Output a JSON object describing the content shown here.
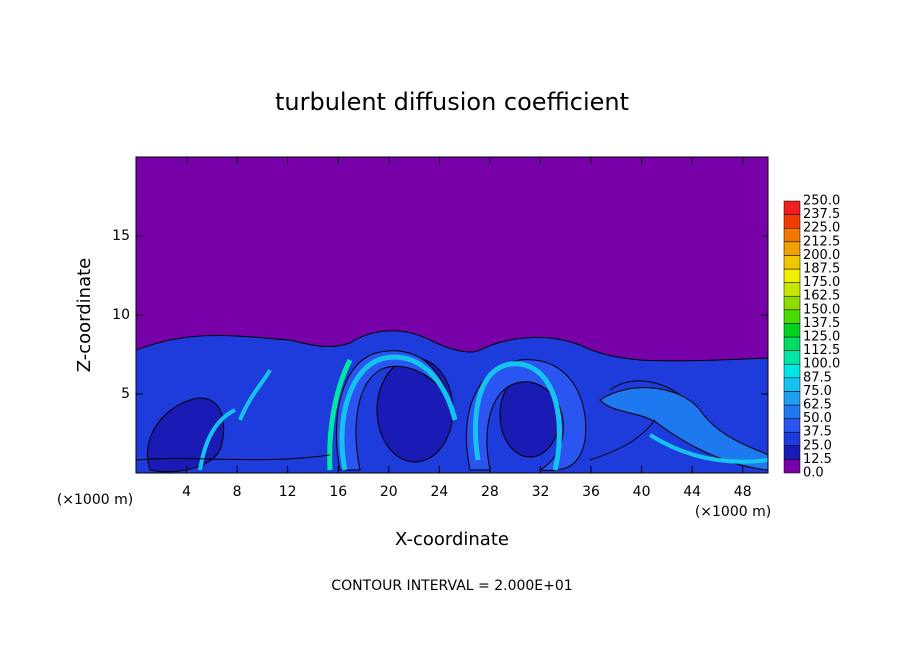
{
  "chart_data": {
    "type": "contour",
    "title": "turbulent diffusion coefficient",
    "xlabel": "X-coordinate",
    "ylabel": "Z-coordinate",
    "x_unit_left": "(×1000 m)",
    "x_unit_right": "(×1000 m)",
    "footnote": "CONTOUR INTERVAL = 2.000E+01",
    "xlim": [
      0,
      50
    ],
    "ylim": [
      0,
      20
    ],
    "xticks": [
      4,
      8,
      12,
      16,
      20,
      24,
      28,
      32,
      36,
      40,
      44,
      48
    ],
    "yticks": [
      5,
      10,
      15
    ],
    "colorbar": {
      "levels": [
        {
          "value": 0,
          "label": "0.0"
        },
        {
          "value": 12.5,
          "label": "12.5"
        },
        {
          "value": 25,
          "label": "25.0"
        },
        {
          "value": 37.5,
          "label": "37.5"
        },
        {
          "value": 50,
          "label": "50.0"
        },
        {
          "value": 62.5,
          "label": "62.5"
        },
        {
          "value": 75,
          "label": "75.0"
        },
        {
          "value": 87.5,
          "label": "87.5"
        },
        {
          "value": 100,
          "label": "100.0"
        },
        {
          "value": 112.5,
          "label": "112.5"
        },
        {
          "value": 125,
          "label": "125.0"
        },
        {
          "value": 137.5,
          "label": "137.5"
        },
        {
          "value": 150,
          "label": "150.0"
        },
        {
          "value": 162.5,
          "label": "162.5"
        },
        {
          "value": 175,
          "label": "175.0"
        },
        {
          "value": 187.5,
          "label": "187.5"
        },
        {
          "value": 200,
          "label": "200.0"
        },
        {
          "value": 212.5,
          "label": "212.5"
        },
        {
          "value": 225,
          "label": "225.0"
        },
        {
          "value": 237.5,
          "label": "237.5"
        },
        {
          "value": 250,
          "label": "250.0"
        }
      ],
      "colors": [
        "#7800a8",
        "#1a1ab4",
        "#1e3cdc",
        "#2a55f0",
        "#1e78f0",
        "#1ea0f0",
        "#14c3f0",
        "#00e6e6",
        "#00e6a5",
        "#00dc64",
        "#00d21e",
        "#46dc00",
        "#8cdc00",
        "#c8e600",
        "#f0f000",
        "#f0c800",
        "#f0a000",
        "#f07800",
        "#f03c00",
        "#f01e1e",
        "#f08080"
      ]
    }
  }
}
